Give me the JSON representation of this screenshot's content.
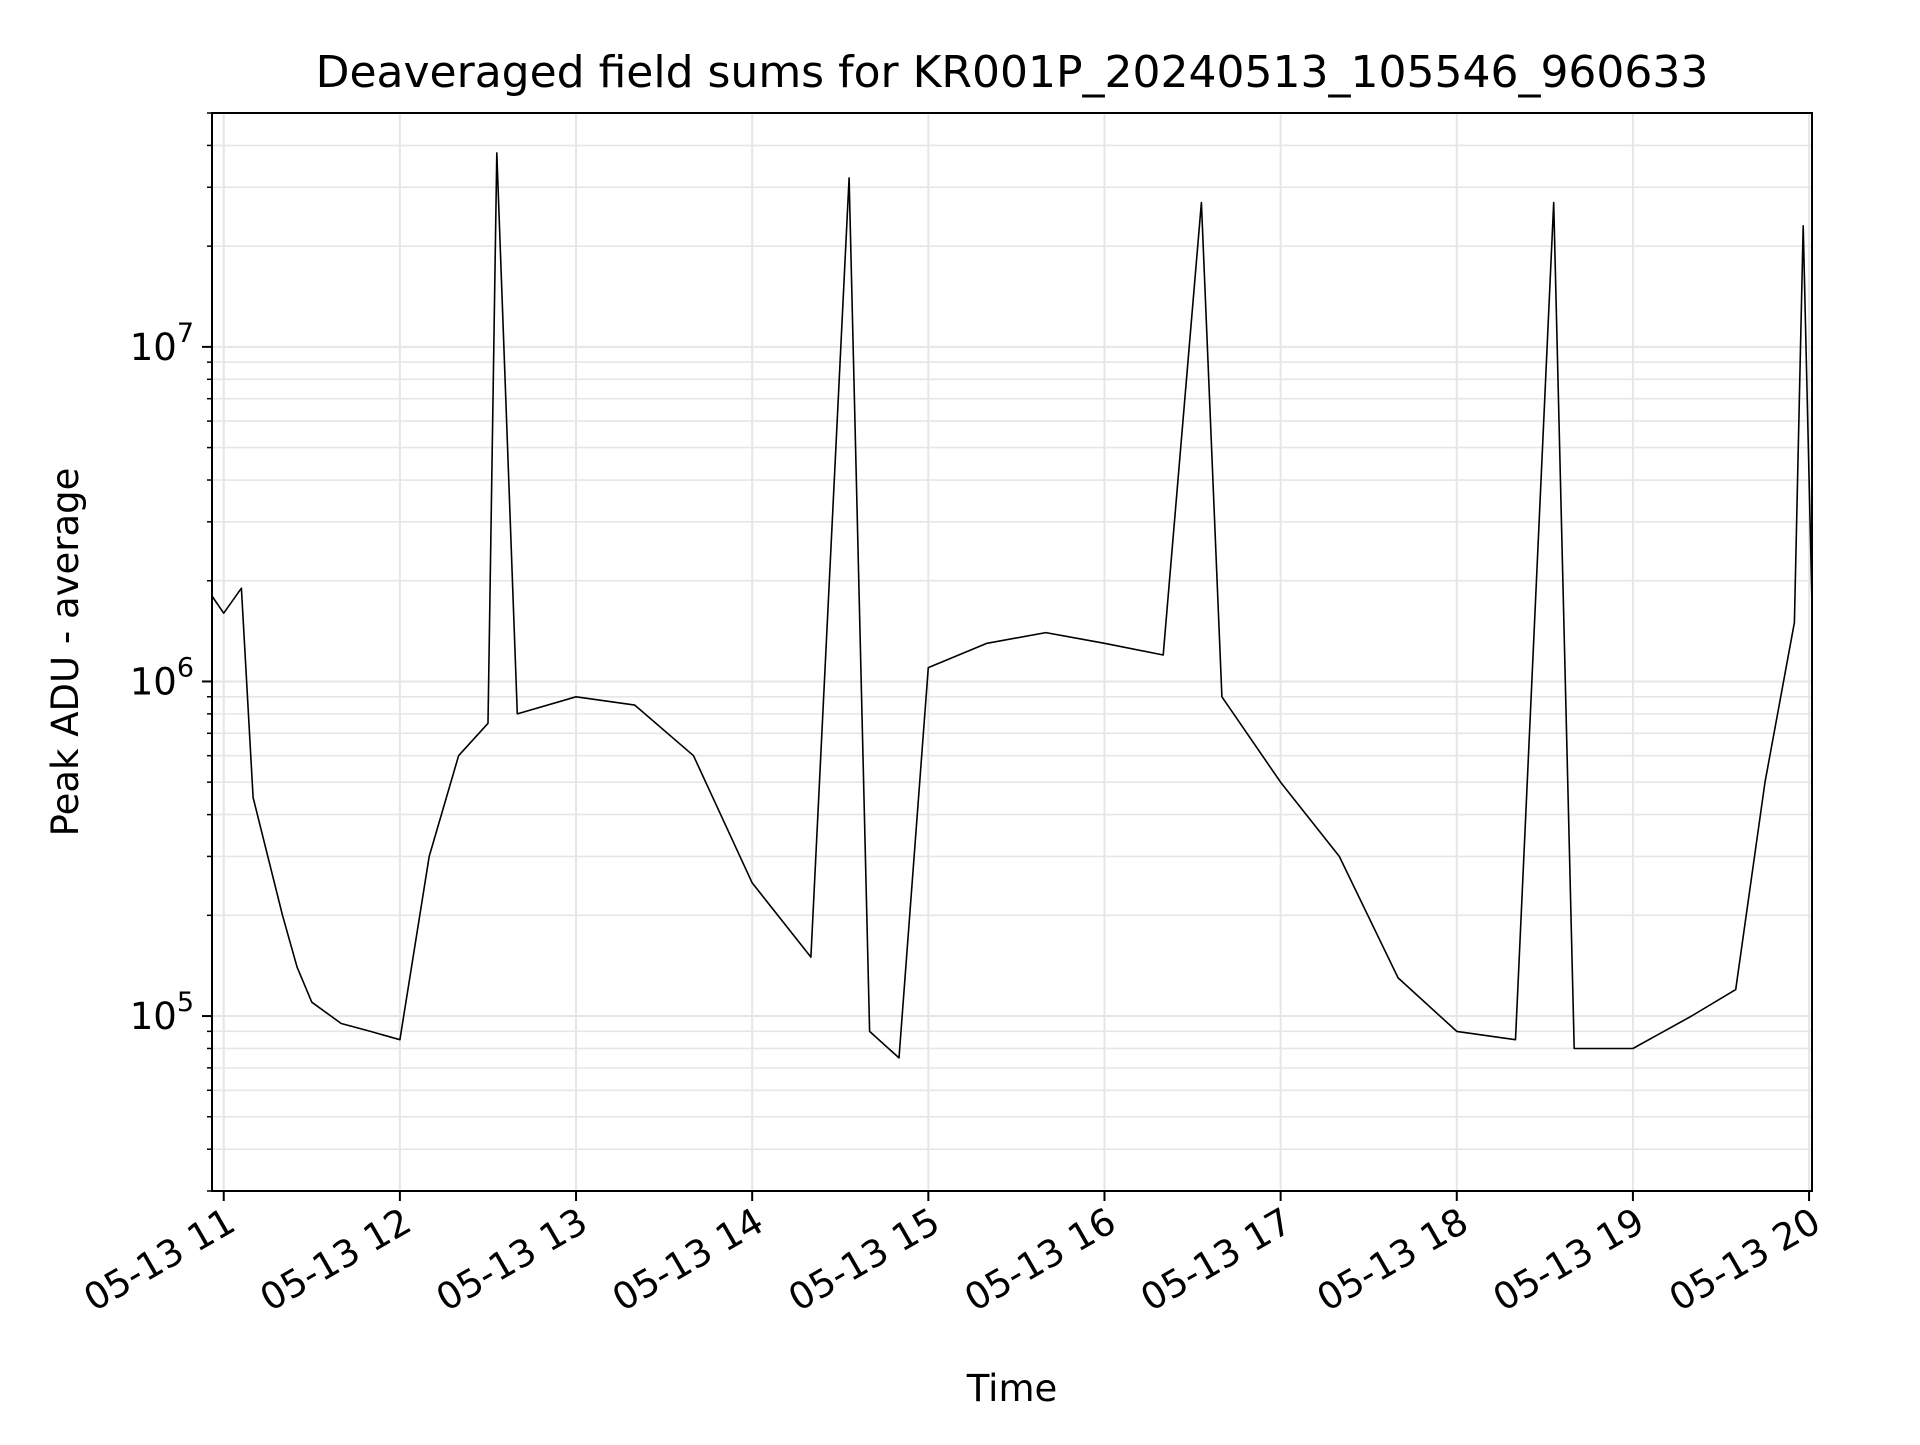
{
  "chart_data": {
    "type": "line",
    "title": "Deaveraged field sums for KR001P_20240513_105546_960633",
    "xlabel": "Time",
    "ylabel": "Peak ADU - average",
    "y_scale": "log",
    "grid": true,
    "legend": "none",
    "colors": {
      "line": "#000000",
      "grid": "#e6e6e6",
      "axes": "#000000",
      "background": "#ffffff"
    },
    "xlim": [
      "2024-05-13 10:56",
      "2024-05-13 20:01"
    ],
    "ylim": [
      30000,
      50000000
    ],
    "x_ticks": [
      {
        "t": "2024-05-13 11:00",
        "label": "05-13 11"
      },
      {
        "t": "2024-05-13 12:00",
        "label": "05-13 12"
      },
      {
        "t": "2024-05-13 13:00",
        "label": "05-13 13"
      },
      {
        "t": "2024-05-13 14:00",
        "label": "05-13 14"
      },
      {
        "t": "2024-05-13 15:00",
        "label": "05-13 15"
      },
      {
        "t": "2024-05-13 16:00",
        "label": "05-13 16"
      },
      {
        "t": "2024-05-13 17:00",
        "label": "05-13 17"
      },
      {
        "t": "2024-05-13 18:00",
        "label": "05-13 18"
      },
      {
        "t": "2024-05-13 19:00",
        "label": "05-13 19"
      },
      {
        "t": "2024-05-13 20:00",
        "label": "05-13 20"
      }
    ],
    "y_ticks": [
      {
        "value": 100000,
        "base": "10",
        "exp": "5"
      },
      {
        "value": 1000000,
        "base": "10",
        "exp": "6"
      },
      {
        "value": 10000000,
        "base": "10",
        "exp": "7"
      }
    ],
    "series": [
      {
        "x": [
          "2024-05-13 10:56",
          "2024-05-13 11:00",
          "2024-05-13 11:06",
          "2024-05-13 11:10",
          "2024-05-13 11:15",
          "2024-05-13 11:20",
          "2024-05-13 11:25",
          "2024-05-13 11:30",
          "2024-05-13 11:40",
          "2024-05-13 11:50",
          "2024-05-13 12:00",
          "2024-05-13 12:10",
          "2024-05-13 12:20",
          "2024-05-13 12:30",
          "2024-05-13 12:33",
          "2024-05-13 12:40",
          "2024-05-13 13:00",
          "2024-05-13 13:20",
          "2024-05-13 13:40",
          "2024-05-13 14:00",
          "2024-05-13 14:20",
          "2024-05-13 14:33",
          "2024-05-13 14:40",
          "2024-05-13 14:50",
          "2024-05-13 15:00",
          "2024-05-13 15:20",
          "2024-05-13 15:40",
          "2024-05-13 16:00",
          "2024-05-13 16:20",
          "2024-05-13 16:33",
          "2024-05-13 16:40",
          "2024-05-13 17:00",
          "2024-05-13 17:20",
          "2024-05-13 17:40",
          "2024-05-13 18:00",
          "2024-05-13 18:20",
          "2024-05-13 18:33",
          "2024-05-13 18:40",
          "2024-05-13 19:00",
          "2024-05-13 19:20",
          "2024-05-13 19:35",
          "2024-05-13 19:45",
          "2024-05-13 19:55",
          "2024-05-13 19:58",
          "2024-05-13 20:01"
        ],
        "y": [
          1800000,
          1600000,
          1900000,
          450000,
          300000,
          200000,
          140000,
          110000,
          95000,
          90000,
          85000,
          300000,
          600000,
          750000,
          38000000,
          800000,
          900000,
          850000,
          600000,
          250000,
          150000,
          32000000,
          90000,
          75000,
          1100000,
          1300000,
          1400000,
          1300000,
          1200000,
          27000000,
          900000,
          500000,
          300000,
          130000,
          90000,
          85000,
          27000000,
          80000,
          80000,
          100000,
          120000,
          500000,
          1500000,
          23000000,
          1700000
        ]
      }
    ]
  }
}
